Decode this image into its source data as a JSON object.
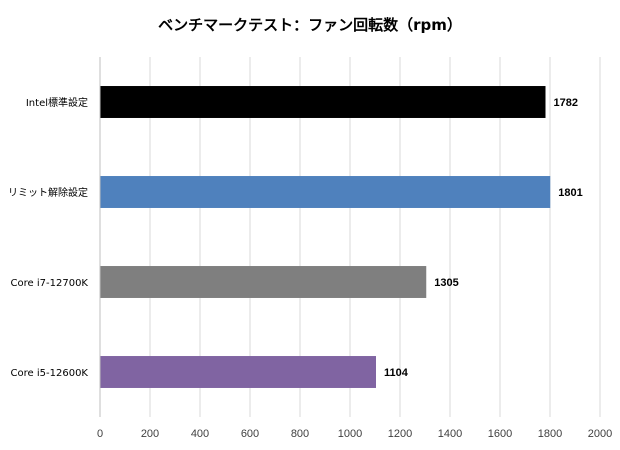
{
  "chart_data": {
    "type": "bar",
    "orientation": "horizontal",
    "title": "ベンチマークテスト：ファン回転数（rpm）",
    "xlabel": "",
    "ylabel": "",
    "categories": [
      "Intel標準設定",
      "リミット解除設定",
      "Core i7-12700K",
      "Core i5-12600K"
    ],
    "values": [
      1782,
      1801,
      1305,
      1104
    ],
    "colors": [
      "#000000",
      "#4f81bd",
      "#7f7f7f",
      "#8064a2"
    ],
    "xlim": [
      0,
      2000
    ],
    "xticks": [
      0,
      200,
      400,
      600,
      800,
      1000,
      1200,
      1400,
      1600,
      1800,
      2000
    ],
    "grid": true,
    "legend": "none"
  }
}
